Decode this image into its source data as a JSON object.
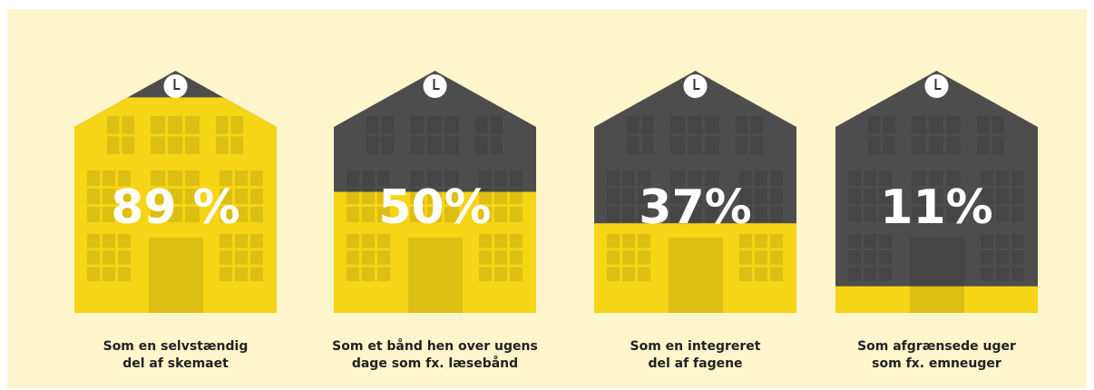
{
  "chart_data": {
    "type": "house",
    "categories": [
      "Som en selvstændig\ndel af skemaet",
      "Som et bånd hen over ugens\ndage som fx. læsebånd",
      "Som en integreret\ndel af fagene",
      "Som afgrænsede uger\nsom fx. emneuger"
    ],
    "values": [
      89,
      50,
      37,
      11
    ],
    "value_labels": [
      "89 %",
      "50%",
      "37%",
      "11%"
    ],
    "ylim": [
      0,
      100
    ],
    "color": "#f6d416",
    "empty_color": "#4d4d4d"
  }
}
